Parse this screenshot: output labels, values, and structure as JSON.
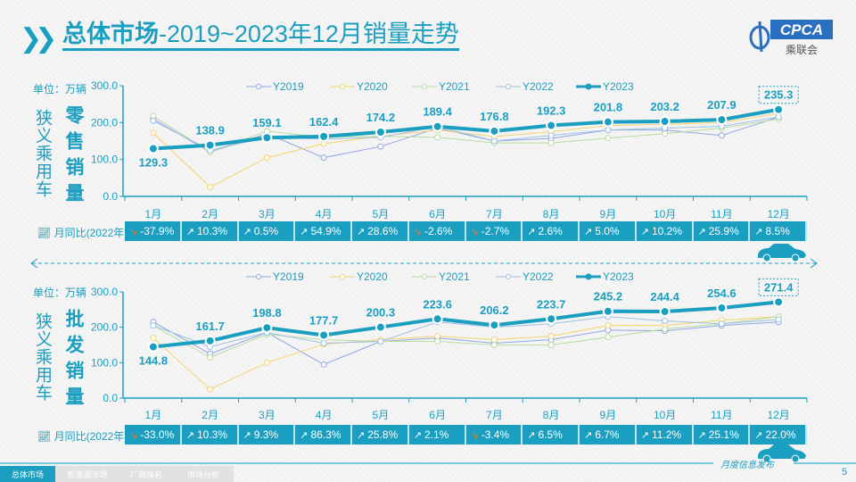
{
  "header": {
    "title_bold": "总体市场",
    "title_rest": "-2019~2023年12月销量走势",
    "logo_text": "CPCA",
    "logo_sub": "乘联会"
  },
  "colors": {
    "accent": "#1a9fc0",
    "Y2019": "#8fa6e0",
    "Y2020": "#f6d36b",
    "Y2021": "#b9dca0",
    "Y2022": "#9cc1e6",
    "Y2023": "#1a9fc0",
    "down": "#e8782a"
  },
  "yoy_label": "月同比(2022年)",
  "chart_data": [
    {
      "type": "line",
      "unit_label": "单位：万辆",
      "side_label": "狭义乘用车",
      "metric_label": "零售销量",
      "categories": [
        "1月",
        "2月",
        "3月",
        "4月",
        "5月",
        "6月",
        "7月",
        "8月",
        "9月",
        "10月",
        "11月",
        "12月"
      ],
      "ylim": [
        0,
        300
      ],
      "yticks": [
        "0.0",
        "100.0",
        "200.0",
        "300.0"
      ],
      "legend_position": "top",
      "series": [
        {
          "name": "Y2019",
          "values": [
            210,
            120,
            170,
            105,
            135,
            185,
            150,
            157,
            180,
            180,
            165,
            215
          ]
        },
        {
          "name": "Y2020",
          "values": [
            172,
            25,
            105,
            143,
            163,
            180,
            162,
            175,
            192,
            195,
            200,
            225
          ]
        },
        {
          "name": "Y2021",
          "values": [
            218,
            120,
            177,
            160,
            163,
            160,
            145,
            145,
            158,
            170,
            185,
            210
          ]
        },
        {
          "name": "Y2022",
          "values": [
            205,
            125,
            160,
            155,
            160,
            190,
            150,
            165,
            180,
            185,
            190,
            215
          ]
        },
        {
          "name": "Y2023",
          "values": [
            129.3,
            138.9,
            159.1,
            162.4,
            174.2,
            189.4,
            176.8,
            192.3,
            201.8,
            203.2,
            207.9,
            235.3
          ],
          "labels": [
            "129.3",
            "138.9",
            "159.1",
            "162.4",
            "174.2",
            "189.4",
            "176.8",
            "192.3",
            "201.8",
            "203.2",
            "207.9",
            "235.3"
          ]
        }
      ],
      "yoy": [
        {
          "value": "-37.9%",
          "trend": "down"
        },
        {
          "value": "10.3%",
          "trend": "up"
        },
        {
          "value": "0.5%",
          "trend": "up"
        },
        {
          "value": "54.9%",
          "trend": "up"
        },
        {
          "value": "28.6%",
          "trend": "up"
        },
        {
          "value": "-2.6%",
          "trend": "down"
        },
        {
          "value": "-2.7%",
          "trend": "down"
        },
        {
          "value": "2.6%",
          "trend": "up"
        },
        {
          "value": "5.0%",
          "trend": "up"
        },
        {
          "value": "10.2%",
          "trend": "up"
        },
        {
          "value": "25.9%",
          "trend": "up"
        },
        {
          "value": "8.5%",
          "trend": "up"
        }
      ]
    },
    {
      "type": "line",
      "unit_label": "单位：万辆",
      "side_label": "狭义乘用车",
      "metric_label": "批发销量",
      "categories": [
        "1月",
        "2月",
        "3月",
        "4月",
        "5月",
        "6月",
        "7月",
        "8月",
        "9月",
        "10月",
        "11月",
        "12月"
      ],
      "ylim": [
        0,
        300
      ],
      "yticks": [
        "0.0",
        "100.0",
        "200.0",
        "300.0"
      ],
      "legend_position": "top",
      "series": [
        {
          "name": "Y2019",
          "values": [
            215,
            125,
            185,
            95,
            160,
            170,
            155,
            165,
            192,
            190,
            205,
            215
          ]
        },
        {
          "name": "Y2020",
          "values": [
            170,
            25,
            100,
            152,
            165,
            175,
            165,
            175,
            205,
            205,
            220,
            230
          ]
        },
        {
          "name": "Y2021",
          "values": [
            205,
            115,
            180,
            165,
            160,
            160,
            150,
            150,
            172,
            195,
            210,
            230
          ]
        },
        {
          "name": "Y2022",
          "values": [
            205,
            145,
            185,
            155,
            160,
            215,
            200,
            210,
            230,
            218,
            210,
            222
          ]
        },
        {
          "name": "Y2023",
          "values": [
            144.8,
            161.7,
            198.8,
            177.7,
            200.3,
            223.6,
            206.2,
            223.7,
            245.2,
            244.4,
            254.6,
            271.4
          ],
          "labels": [
            "144.8",
            "161.7",
            "198.8",
            "177.7",
            "200.3",
            "223.6",
            "206.2",
            "223.7",
            "245.2",
            "244.4",
            "254.6",
            "271.4"
          ]
        }
      ],
      "yoy": [
        {
          "value": "-33.0%",
          "trend": "down"
        },
        {
          "value": "10.3%",
          "trend": "up"
        },
        {
          "value": "9.3%",
          "trend": "up"
        },
        {
          "value": "86.3%",
          "trend": "up"
        },
        {
          "value": "25.8%",
          "trend": "up"
        },
        {
          "value": "2.1%",
          "trend": "up"
        },
        {
          "value": "-3.4%",
          "trend": "down"
        },
        {
          "value": "6.5%",
          "trend": "up"
        },
        {
          "value": "6.7%",
          "trend": "up"
        },
        {
          "value": "11.2%",
          "trend": "up"
        },
        {
          "value": "25.1%",
          "trend": "up"
        },
        {
          "value": "22.0%",
          "trend": "up"
        }
      ]
    }
  ],
  "footer": {
    "tabs": [
      "总体市场",
      "新能源市场",
      "厂商排名",
      "市场分析"
    ],
    "active_tab": 0,
    "publish_label": "月度信息发布",
    "page_number": "5"
  }
}
